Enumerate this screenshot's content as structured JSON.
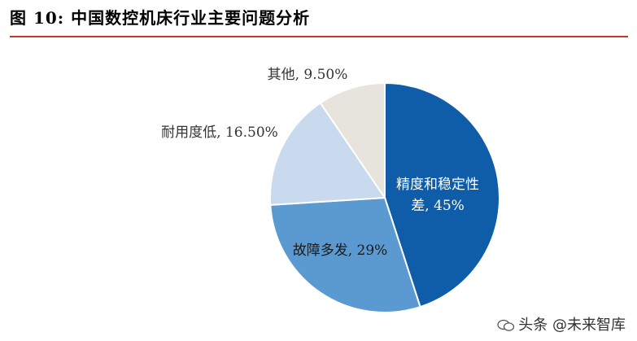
{
  "figure": {
    "title": "图 10: 中国数控机床行业主要问题分析"
  },
  "chart_data": {
    "type": "pie",
    "title": "",
    "slices": [
      {
        "label": "精度和稳定性差",
        "display": "精度和稳定性差, 45%",
        "value": 45,
        "color": "#0F5DA8"
      },
      {
        "label": "故障多发",
        "display": "故障多发, 29%",
        "value": 29,
        "color": "#5B9AD0"
      },
      {
        "label": "耐用度低",
        "display": "耐用度低, 16.50%",
        "value": 16.5,
        "color": "#C9DAEE"
      },
      {
        "label": "其他",
        "display": "其他, 9.50%",
        "value": 9.5,
        "color": "#E7E4DE"
      }
    ],
    "start_angle_deg": 0,
    "direction": "clockwise"
  },
  "watermark": {
    "text": "头条 @未来智库",
    "icon": "wechat-bubble-icon"
  }
}
